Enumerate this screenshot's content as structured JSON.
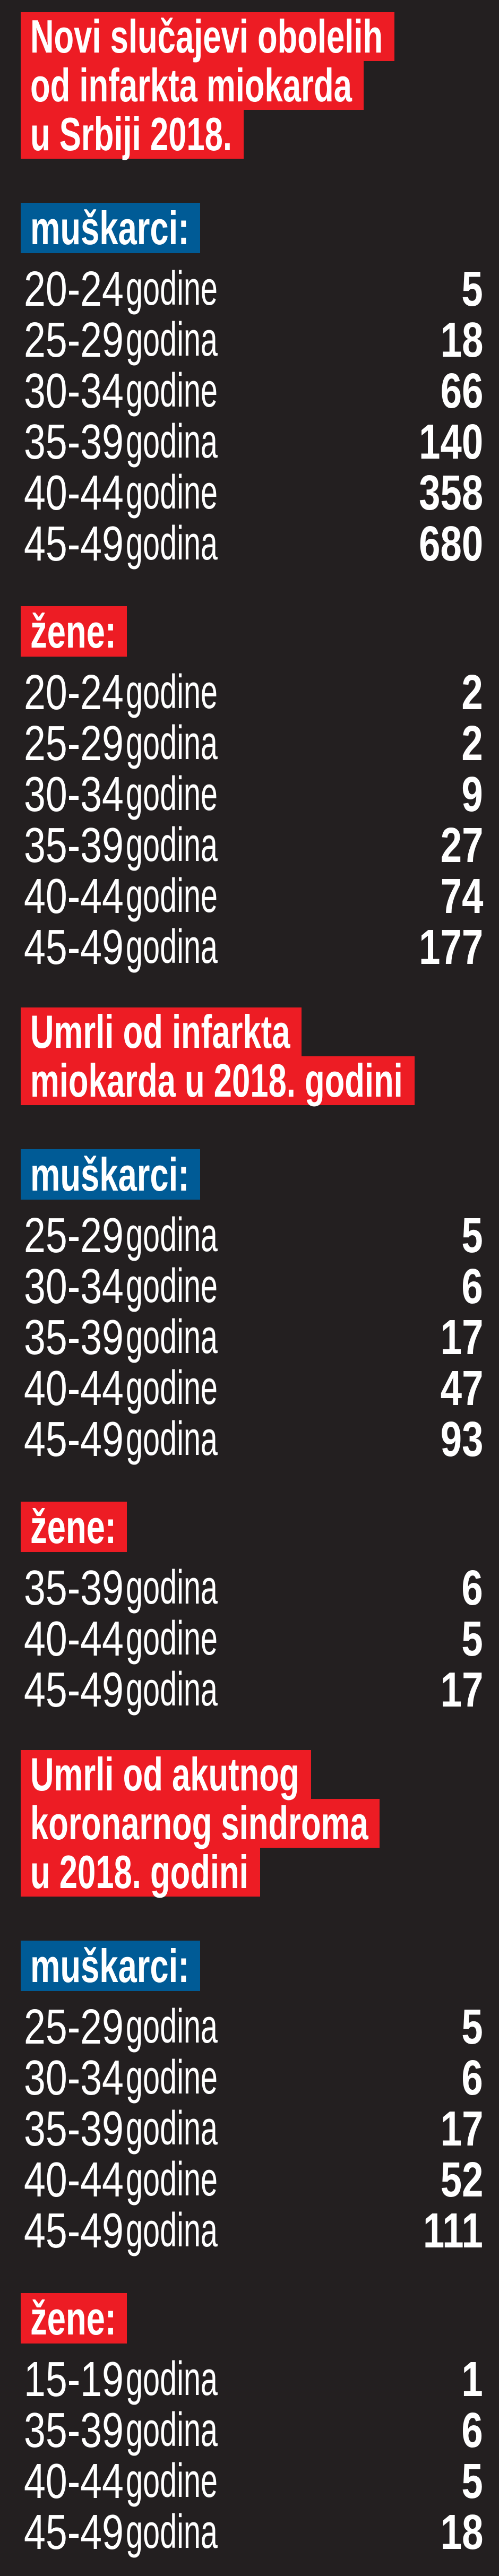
{
  "colors": {
    "background": "#231f20",
    "title_bg": "#ed1c24",
    "men_bg": "#005b96",
    "women_bg": "#ed1c24",
    "text": "#ffffff"
  },
  "sections": [
    {
      "title_lines": [
        "Novi slučajevi obolelih",
        "od infarkta miokarda",
        "u Srbiji 2018."
      ],
      "groups": [
        {
          "label": "muškarci:",
          "kind": "men",
          "rows": [
            {
              "age": "20-24",
              "unit": "godine",
              "value": "5"
            },
            {
              "age": "25-29",
              "unit": "godina",
              "value": "18"
            },
            {
              "age": "30-34",
              "unit": "godine",
              "value": "66"
            },
            {
              "age": "35-39",
              "unit": "godina",
              "value": "140"
            },
            {
              "age": "40-44",
              "unit": "godine",
              "value": "358"
            },
            {
              "age": "45-49",
              "unit": "godina",
              "value": "680"
            }
          ]
        },
        {
          "label": "žene:",
          "kind": "women",
          "rows": [
            {
              "age": "20-24",
              "unit": "godine",
              "value": "2"
            },
            {
              "age": "25-29",
              "unit": "godina",
              "value": "2"
            },
            {
              "age": "30-34",
              "unit": "godine",
              "value": "9"
            },
            {
              "age": "35-39",
              "unit": "godina",
              "value": "27"
            },
            {
              "age": "40-44",
              "unit": "godine",
              "value": "74"
            },
            {
              "age": "45-49",
              "unit": "godina",
              "value": "177"
            }
          ]
        }
      ]
    },
    {
      "title_lines": [
        "Umrli od infarkta",
        "miokarda u 2018. godini"
      ],
      "groups": [
        {
          "label": "muškarci:",
          "kind": "men",
          "rows": [
            {
              "age": "25-29",
              "unit": "godina",
              "value": "5"
            },
            {
              "age": "30-34",
              "unit": "godine",
              "value": "6"
            },
            {
              "age": "35-39",
              "unit": "godina",
              "value": "17"
            },
            {
              "age": "40-44",
              "unit": "godine",
              "value": "47"
            },
            {
              "age": "45-49",
              "unit": "godina",
              "value": "93"
            }
          ]
        },
        {
          "label": "žene:",
          "kind": "women",
          "rows": [
            {
              "age": "35-39",
              "unit": "godina",
              "value": "6"
            },
            {
              "age": "40-44",
              "unit": "godine",
              "value": "5"
            },
            {
              "age": "45-49",
              "unit": "godina",
              "value": "17"
            }
          ]
        }
      ]
    },
    {
      "title_lines": [
        "Umrli od akutnog",
        "koronarnog sindroma",
        "u 2018. godini"
      ],
      "groups": [
        {
          "label": "muškarci:",
          "kind": "men",
          "rows": [
            {
              "age": "25-29",
              "unit": "godina",
              "value": "5"
            },
            {
              "age": "30-34",
              "unit": "godine",
              "value": "6"
            },
            {
              "age": "35-39",
              "unit": "godina",
              "value": "17"
            },
            {
              "age": "40-44",
              "unit": "godine",
              "value": "52"
            },
            {
              "age": "45-49",
              "unit": "godina",
              "value": "111"
            }
          ]
        },
        {
          "label": "žene:",
          "kind": "women",
          "rows": [
            {
              "age": "15-19",
              "unit": "godina",
              "value": "1"
            },
            {
              "age": "35-39",
              "unit": "godina",
              "value": "6"
            },
            {
              "age": "40-44",
              "unit": "godine",
              "value": "5"
            },
            {
              "age": "45-49",
              "unit": "godina",
              "value": "18"
            }
          ]
        }
      ]
    }
  ]
}
